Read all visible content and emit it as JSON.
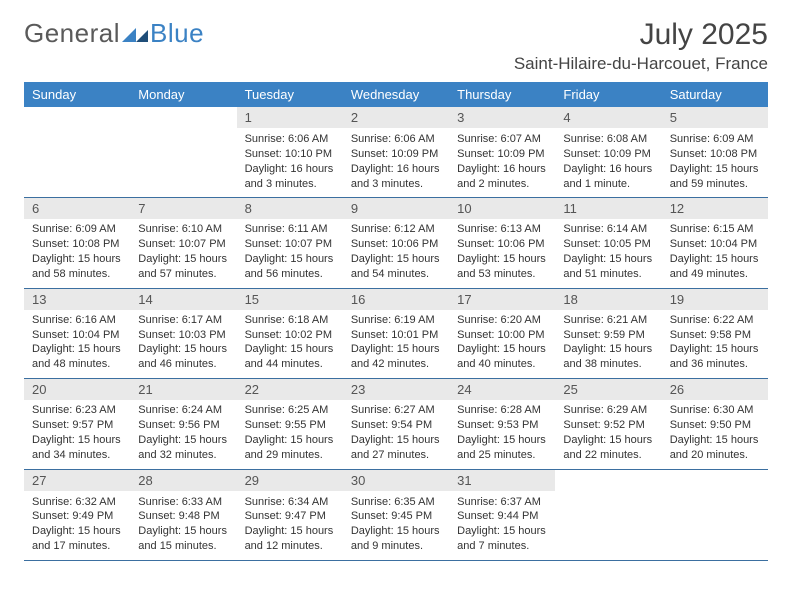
{
  "logo": {
    "text1": "General",
    "text2": "Blue"
  },
  "title": "July 2025",
  "location": "Saint-Hilaire-du-Harcouet, France",
  "colors": {
    "header_bg": "#3b82c4",
    "daynum_bg": "#e9e9e9",
    "rule": "#3b6fa0"
  },
  "dow": [
    "Sunday",
    "Monday",
    "Tuesday",
    "Wednesday",
    "Thursday",
    "Friday",
    "Saturday"
  ],
  "weeks": [
    [
      null,
      null,
      {
        "n": "1",
        "sr": "Sunrise: 6:06 AM",
        "ss": "Sunset: 10:10 PM",
        "dl": "Daylight: 16 hours and 3 minutes."
      },
      {
        "n": "2",
        "sr": "Sunrise: 6:06 AM",
        "ss": "Sunset: 10:09 PM",
        "dl": "Daylight: 16 hours and 3 minutes."
      },
      {
        "n": "3",
        "sr": "Sunrise: 6:07 AM",
        "ss": "Sunset: 10:09 PM",
        "dl": "Daylight: 16 hours and 2 minutes."
      },
      {
        "n": "4",
        "sr": "Sunrise: 6:08 AM",
        "ss": "Sunset: 10:09 PM",
        "dl": "Daylight: 16 hours and 1 minute."
      },
      {
        "n": "5",
        "sr": "Sunrise: 6:09 AM",
        "ss": "Sunset: 10:08 PM",
        "dl": "Daylight: 15 hours and 59 minutes."
      }
    ],
    [
      {
        "n": "6",
        "sr": "Sunrise: 6:09 AM",
        "ss": "Sunset: 10:08 PM",
        "dl": "Daylight: 15 hours and 58 minutes."
      },
      {
        "n": "7",
        "sr": "Sunrise: 6:10 AM",
        "ss": "Sunset: 10:07 PM",
        "dl": "Daylight: 15 hours and 57 minutes."
      },
      {
        "n": "8",
        "sr": "Sunrise: 6:11 AM",
        "ss": "Sunset: 10:07 PM",
        "dl": "Daylight: 15 hours and 56 minutes."
      },
      {
        "n": "9",
        "sr": "Sunrise: 6:12 AM",
        "ss": "Sunset: 10:06 PM",
        "dl": "Daylight: 15 hours and 54 minutes."
      },
      {
        "n": "10",
        "sr": "Sunrise: 6:13 AM",
        "ss": "Sunset: 10:06 PM",
        "dl": "Daylight: 15 hours and 53 minutes."
      },
      {
        "n": "11",
        "sr": "Sunrise: 6:14 AM",
        "ss": "Sunset: 10:05 PM",
        "dl": "Daylight: 15 hours and 51 minutes."
      },
      {
        "n": "12",
        "sr": "Sunrise: 6:15 AM",
        "ss": "Sunset: 10:04 PM",
        "dl": "Daylight: 15 hours and 49 minutes."
      }
    ],
    [
      {
        "n": "13",
        "sr": "Sunrise: 6:16 AM",
        "ss": "Sunset: 10:04 PM",
        "dl": "Daylight: 15 hours and 48 minutes."
      },
      {
        "n": "14",
        "sr": "Sunrise: 6:17 AM",
        "ss": "Sunset: 10:03 PM",
        "dl": "Daylight: 15 hours and 46 minutes."
      },
      {
        "n": "15",
        "sr": "Sunrise: 6:18 AM",
        "ss": "Sunset: 10:02 PM",
        "dl": "Daylight: 15 hours and 44 minutes."
      },
      {
        "n": "16",
        "sr": "Sunrise: 6:19 AM",
        "ss": "Sunset: 10:01 PM",
        "dl": "Daylight: 15 hours and 42 minutes."
      },
      {
        "n": "17",
        "sr": "Sunrise: 6:20 AM",
        "ss": "Sunset: 10:00 PM",
        "dl": "Daylight: 15 hours and 40 minutes."
      },
      {
        "n": "18",
        "sr": "Sunrise: 6:21 AM",
        "ss": "Sunset: 9:59 PM",
        "dl": "Daylight: 15 hours and 38 minutes."
      },
      {
        "n": "19",
        "sr": "Sunrise: 6:22 AM",
        "ss": "Sunset: 9:58 PM",
        "dl": "Daylight: 15 hours and 36 minutes."
      }
    ],
    [
      {
        "n": "20",
        "sr": "Sunrise: 6:23 AM",
        "ss": "Sunset: 9:57 PM",
        "dl": "Daylight: 15 hours and 34 minutes."
      },
      {
        "n": "21",
        "sr": "Sunrise: 6:24 AM",
        "ss": "Sunset: 9:56 PM",
        "dl": "Daylight: 15 hours and 32 minutes."
      },
      {
        "n": "22",
        "sr": "Sunrise: 6:25 AM",
        "ss": "Sunset: 9:55 PM",
        "dl": "Daylight: 15 hours and 29 minutes."
      },
      {
        "n": "23",
        "sr": "Sunrise: 6:27 AM",
        "ss": "Sunset: 9:54 PM",
        "dl": "Daylight: 15 hours and 27 minutes."
      },
      {
        "n": "24",
        "sr": "Sunrise: 6:28 AM",
        "ss": "Sunset: 9:53 PM",
        "dl": "Daylight: 15 hours and 25 minutes."
      },
      {
        "n": "25",
        "sr": "Sunrise: 6:29 AM",
        "ss": "Sunset: 9:52 PM",
        "dl": "Daylight: 15 hours and 22 minutes."
      },
      {
        "n": "26",
        "sr": "Sunrise: 6:30 AM",
        "ss": "Sunset: 9:50 PM",
        "dl": "Daylight: 15 hours and 20 minutes."
      }
    ],
    [
      {
        "n": "27",
        "sr": "Sunrise: 6:32 AM",
        "ss": "Sunset: 9:49 PM",
        "dl": "Daylight: 15 hours and 17 minutes."
      },
      {
        "n": "28",
        "sr": "Sunrise: 6:33 AM",
        "ss": "Sunset: 9:48 PM",
        "dl": "Daylight: 15 hours and 15 minutes."
      },
      {
        "n": "29",
        "sr": "Sunrise: 6:34 AM",
        "ss": "Sunset: 9:47 PM",
        "dl": "Daylight: 15 hours and 12 minutes."
      },
      {
        "n": "30",
        "sr": "Sunrise: 6:35 AM",
        "ss": "Sunset: 9:45 PM",
        "dl": "Daylight: 15 hours and 9 minutes."
      },
      {
        "n": "31",
        "sr": "Sunrise: 6:37 AM",
        "ss": "Sunset: 9:44 PM",
        "dl": "Daylight: 15 hours and 7 minutes."
      },
      null,
      null
    ]
  ]
}
